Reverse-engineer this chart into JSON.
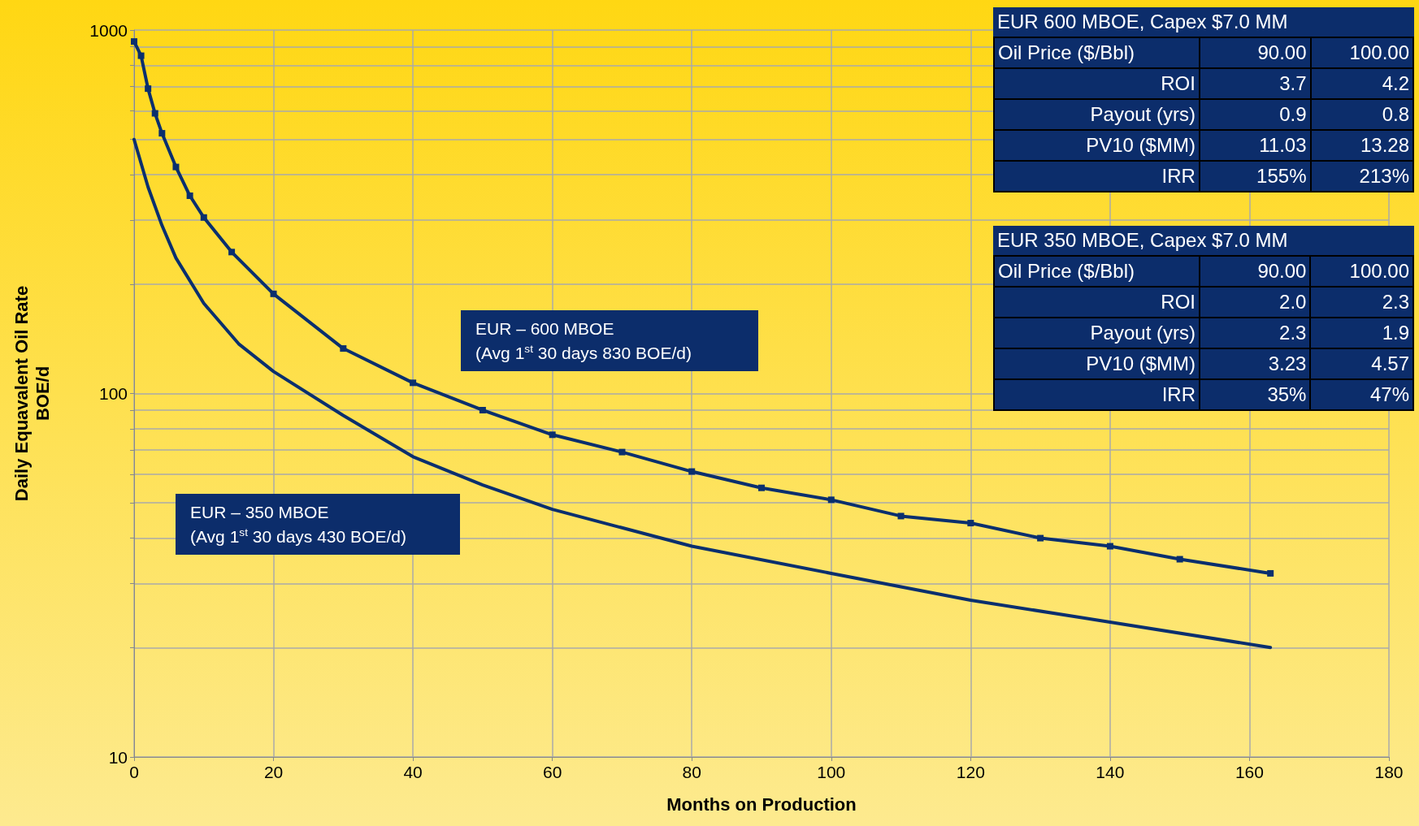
{
  "chart_data": {
    "type": "line",
    "xlabel": "Months on Production",
    "ylabel": "Daily Equavalent Oil Rate\nBOE/d",
    "log": "y",
    "grid": true,
    "xlim": [
      0,
      180
    ],
    "xticks": [
      0,
      20,
      40,
      60,
      80,
      100,
      120,
      140,
      160,
      180
    ],
    "ylim": [
      10,
      1000
    ],
    "yticks": [
      10,
      {
        "value": 20,
        "label": null
      },
      {
        "value": 30,
        "label": null
      },
      {
        "value": 40,
        "label": null
      },
      {
        "value": 50,
        "label": null
      },
      {
        "value": 60,
        "label": null
      },
      {
        "value": 70,
        "label": null
      },
      {
        "value": 80,
        "label": null
      },
      {
        "value": 90,
        "label": null
      },
      100,
      {
        "value": 200,
        "label": null
      },
      {
        "value": 300,
        "label": null
      },
      {
        "value": 400,
        "label": null
      },
      {
        "value": 500,
        "label": null
      },
      {
        "value": 600,
        "label": null
      },
      {
        "value": 700,
        "label": null
      },
      {
        "value": 800,
        "label": null
      },
      {
        "value": 900,
        "label": null
      },
      1000
    ],
    "series": [
      {
        "color": "#0a2f6e",
        "marker": "square",
        "x": [
          0,
          1,
          2,
          3,
          4,
          6,
          8,
          10,
          14,
          20,
          30,
          40,
          50,
          60,
          70,
          80,
          90,
          100,
          110,
          120,
          130,
          140,
          150,
          163
        ],
        "values": [
          930,
          850,
          690,
          590,
          520,
          420,
          350,
          305,
          245,
          188,
          133,
          107,
          90,
          77,
          69,
          61,
          55,
          51,
          46,
          44,
          40,
          38,
          35,
          32
        ]
      },
      {
        "color": "#0a2f6e",
        "marker": "none",
        "x": [
          0,
          2,
          4,
          6,
          10,
          15,
          20,
          30,
          40,
          50,
          60,
          80,
          100,
          120,
          140,
          163
        ],
        "values": [
          500,
          370,
          290,
          236,
          177,
          137,
          115,
          87,
          67,
          56,
          48,
          38,
          32,
          27,
          23.5,
          20
        ]
      }
    ],
    "annotations": [
      "EUR – 600 MBOE\n(Avg 1$^{st}$ 30 days 830 BOE/d)",
      "EUR – 350 MBOE\n(Avg 1$^{st}$ 30 days 430 BOE/d)",
      "EUR 600 MBOE, Capex $7.0 MM",
      "Oil Price ($/Bbl)",
      "90.00",
      "100.00",
      "ROI",
      "3.7",
      "4.2",
      "Payout (yrs)",
      "0.9",
      "0.8",
      "PV10 ($MM)",
      "11.03",
      "13.28",
      "IRR",
      "155%",
      "213%",
      "EUR 350 MBOE, Capex $7.0 MM",
      "Oil Price ($/Bbl)",
      "90.00",
      "100.00",
      "ROI",
      "2.0",
      "2.3",
      "Payout (yrs)",
      "2.3",
      "1.9",
      "PV10 ($MM)",
      "3.23",
      "4.57",
      "IRR",
      "35%",
      "47%"
    ]
  }
}
